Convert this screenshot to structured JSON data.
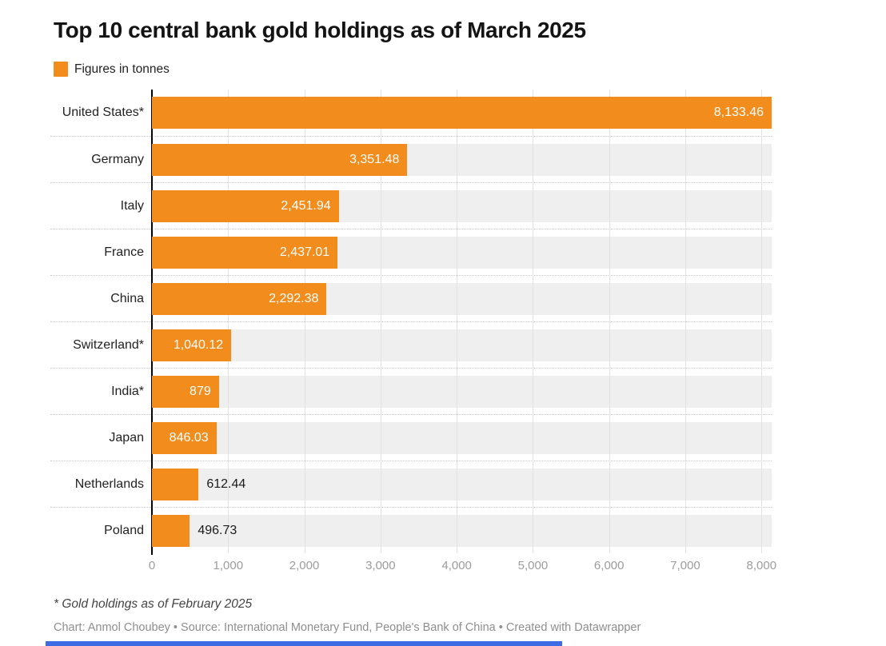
{
  "title": "Top 10 central bank gold holdings as of March 2025",
  "legend": {
    "label": "Figures in tonnes",
    "swatch_color": "#F28C1D"
  },
  "colors": {
    "bar": "#F28C1D",
    "track": "#EFEFEF",
    "gridline": "#E2E2E2",
    "axis": "#000000",
    "tick_label": "#9C9C9C",
    "inside_value_label": "#FFFFFF",
    "outside_value_label": "#1A1A1A",
    "blue_strip": "#3D6BE4"
  },
  "chart_data": {
    "type": "bar",
    "orientation": "horizontal",
    "title": "Top 10 central bank gold holdings as of March 2025",
    "legend_label": "Figures in tonnes",
    "unit": "tonnes",
    "categories": [
      "United States*",
      "Germany",
      "Italy",
      "France",
      "China",
      "Switzerland*",
      "India*",
      "Japan",
      "Netherlands",
      "Poland"
    ],
    "values": [
      8133.46,
      3351.48,
      2451.94,
      2437.01,
      2292.38,
      1040.12,
      879,
      846.03,
      612.44,
      496.73
    ],
    "value_labels": [
      "8,133.46",
      "3,351.48",
      "2,451.94",
      "2,437.01",
      "2,292.38",
      "1,040.12",
      "879",
      "846.03",
      "612.44",
      "496.73"
    ],
    "label_positions": [
      "inside",
      "inside",
      "inside",
      "inside",
      "inside",
      "inside",
      "inside",
      "inside",
      "outside",
      "outside"
    ],
    "xlim": [
      0,
      8133.46
    ],
    "x_ticks": [
      0,
      1000,
      2000,
      3000,
      4000,
      5000,
      6000,
      7000,
      8000
    ],
    "x_tick_labels": [
      "0",
      "1,000",
      "2,000",
      "3,000",
      "4,000",
      "5,000",
      "6,000",
      "7,000",
      "8,000"
    ],
    "grid": "vertical",
    "row_striping": "light-gray tracks behind bars, dotted separators between rows"
  },
  "footnote": "* Gold holdings as of February 2025",
  "credit": "Chart: Anmol Choubey • Source: International Monetary Fund, People's Bank of China • Created with Datawrapper"
}
